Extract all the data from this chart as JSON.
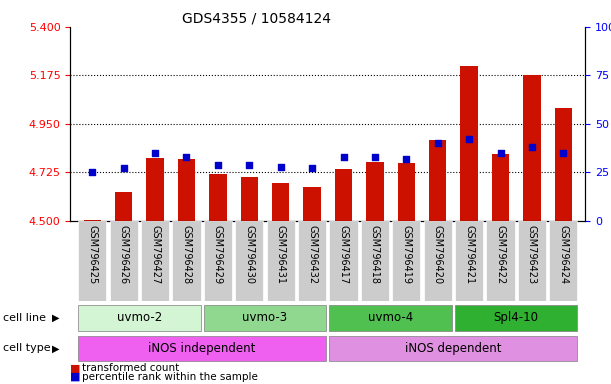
{
  "title": "GDS4355 / 10584124",
  "samples": [
    "GSM796425",
    "GSM796426",
    "GSM796427",
    "GSM796428",
    "GSM796429",
    "GSM796430",
    "GSM796431",
    "GSM796432",
    "GSM796417",
    "GSM796418",
    "GSM796419",
    "GSM796420",
    "GSM796421",
    "GSM796422",
    "GSM796423",
    "GSM796424"
  ],
  "transformed_count": [
    4.505,
    4.635,
    4.79,
    4.785,
    4.715,
    4.705,
    4.675,
    4.655,
    4.74,
    4.775,
    4.77,
    4.875,
    5.22,
    4.81,
    5.175,
    5.025
  ],
  "percentile_rank": [
    25,
    27,
    35,
    33,
    29,
    29,
    28,
    27,
    33,
    33,
    32,
    40,
    42,
    35,
    38,
    35
  ],
  "cell_lines": [
    {
      "label": "uvmo-2",
      "start": 0,
      "end": 4,
      "color": "#d4f5d4"
    },
    {
      "label": "uvmo-3",
      "start": 4,
      "end": 8,
      "color": "#90d890"
    },
    {
      "label": "uvmo-4",
      "start": 8,
      "end": 12,
      "color": "#50c050"
    },
    {
      "label": "Spl4-10",
      "start": 12,
      "end": 16,
      "color": "#30b030"
    }
  ],
  "cell_types": [
    {
      "label": "iNOS independent",
      "start": 0,
      "end": 8,
      "color": "#f060f0"
    },
    {
      "label": "iNOS dependent",
      "start": 8,
      "end": 16,
      "color": "#e090e0"
    }
  ],
  "ylim_left": [
    4.5,
    5.4
  ],
  "ylim_right": [
    0,
    100
  ],
  "yticks_left": [
    4.5,
    4.725,
    4.95,
    5.175,
    5.4
  ],
  "yticks_right": [
    0,
    25,
    50,
    75,
    100
  ],
  "hlines": [
    4.725,
    4.95,
    5.175
  ],
  "bar_color": "#cc1100",
  "dot_color": "#0000cc",
  "bar_bottom": 4.5,
  "bar_width": 0.55,
  "dot_size": 22,
  "legend_items": [
    {
      "label": "transformed count",
      "color": "#cc1100",
      "marker": "s"
    },
    {
      "label": "percentile rank within the sample",
      "color": "#0000cc",
      "marker": "s"
    }
  ],
  "cell_line_label": "cell line",
  "cell_type_label": "cell type",
  "xlabel_bg_color": "#cccccc",
  "fig_bg": "#ffffff"
}
